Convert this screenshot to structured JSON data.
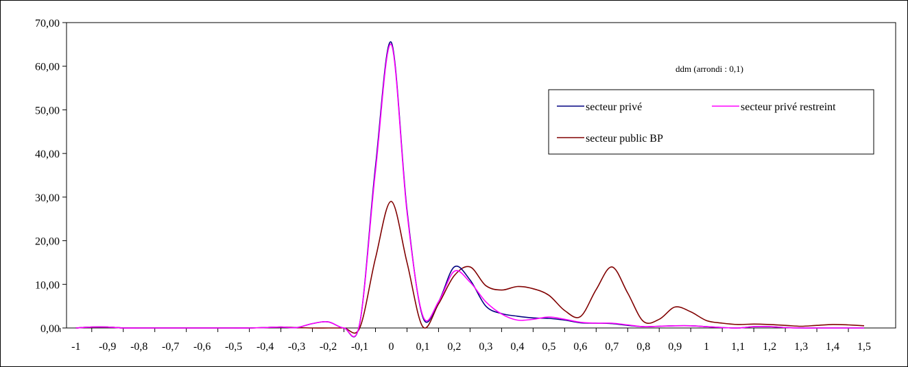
{
  "chart_data": {
    "type": "line",
    "annotation": "ddm  (arrondi : 0,1)",
    "x_labels": [
      "-1",
      "-0,9",
      "-0,8",
      "-0,7",
      "-0,6",
      "-0,5",
      "-0,4",
      "-0,3",
      "-0,2",
      "-0,1",
      "0",
      "0,1",
      "0,2",
      "0,3",
      "0,4",
      "0,5",
      "0,6",
      "0,7",
      "0,8",
      "0,9",
      "1",
      "1,1",
      "1,2",
      "1,3",
      "1,4",
      "1,5"
    ],
    "x": [
      -1,
      -0.9,
      -0.8,
      -0.7,
      -0.6,
      -0.5,
      -0.4,
      -0.3,
      -0.2,
      -0.1,
      0,
      0.1,
      0.2,
      0.3,
      0.4,
      0.5,
      0.6,
      0.7,
      0.8,
      0.9,
      1,
      1.1,
      1.2,
      1.3,
      1.4,
      1.5
    ],
    "y_tick_labels": [
      "0,00",
      "10,00",
      "20,00",
      "30,00",
      "40,00",
      "50,00",
      "60,00",
      "70,00"
    ],
    "ylim": [
      0,
      70
    ],
    "grid": false,
    "legend_position": "top-right",
    "series": [
      {
        "name": "secteur privé",
        "color": "#000080",
        "x": [
          -1,
          -0.95,
          -0.9,
          -0.85,
          -0.8,
          -0.75,
          -0.7,
          -0.65,
          -0.6,
          -0.55,
          -0.5,
          -0.45,
          -0.4,
          -0.35,
          -0.3,
          -0.25,
          -0.2,
          -0.15,
          -0.1,
          -0.05,
          0,
          0.05,
          0.1,
          0.15,
          0.2,
          0.25,
          0.3,
          0.35,
          0.4,
          0.45,
          0.5,
          0.55,
          0.6,
          0.65,
          0.7,
          0.75,
          0.8,
          0.85,
          0.9,
          0.95,
          1,
          1.05,
          1.1,
          1.15,
          1.2,
          1.25,
          1.3,
          1.35,
          1.4,
          1.45,
          1.5
        ],
        "y": [
          0,
          0.2,
          0.2,
          0,
          0,
          0,
          0,
          0,
          0,
          0,
          0,
          0,
          0.1,
          0.2,
          0.1,
          1,
          1.4,
          0,
          1,
          37,
          65.5,
          27,
          2.5,
          6,
          14,
          11,
          5,
          3.3,
          2.7,
          2.3,
          2.2,
          1.8,
          1.2,
          1.1,
          1,
          0.6,
          0.3,
          0.4,
          0.5,
          0.5,
          0.3,
          0.1,
          0,
          0.3,
          0.3,
          0.1,
          0,
          0,
          0,
          0,
          0
        ]
      },
      {
        "name": "secteur privé restreint",
        "color": "#ff00ff",
        "x": [
          -1,
          -0.95,
          -0.9,
          -0.85,
          -0.8,
          -0.75,
          -0.7,
          -0.65,
          -0.6,
          -0.55,
          -0.5,
          -0.45,
          -0.4,
          -0.35,
          -0.3,
          -0.25,
          -0.2,
          -0.15,
          -0.1,
          -0.05,
          0,
          0.05,
          0.1,
          0.15,
          0.2,
          0.25,
          0.3,
          0.35,
          0.4,
          0.45,
          0.5,
          0.55,
          0.6,
          0.65,
          0.7,
          0.75,
          0.8,
          0.85,
          0.9,
          0.95,
          1,
          1.05,
          1.1,
          1.15,
          1.2,
          1.25,
          1.3,
          1.35,
          1.4,
          1.45,
          1.5
        ],
        "y": [
          0,
          0.2,
          0.2,
          0,
          0,
          0,
          0,
          0,
          0,
          0,
          0,
          0,
          0.1,
          0.2,
          0.1,
          1,
          1.4,
          0,
          1,
          36,
          65,
          26.5,
          2.8,
          6,
          13,
          10.5,
          6,
          3.2,
          1.8,
          2,
          2.5,
          2,
          1.3,
          1.1,
          1.1,
          0.7,
          0.3,
          0.4,
          0.5,
          0.5,
          0.3,
          0.1,
          0,
          0.3,
          0.3,
          0.1,
          0,
          0,
          0,
          0,
          0
        ]
      },
      {
        "name": "secteur public BP",
        "color": "#800000",
        "x": [
          -1,
          -0.95,
          -0.9,
          -0.85,
          -0.8,
          -0.75,
          -0.7,
          -0.65,
          -0.6,
          -0.55,
          -0.5,
          -0.45,
          -0.4,
          -0.35,
          -0.3,
          -0.25,
          -0.2,
          -0.15,
          -0.1,
          -0.05,
          0,
          0.05,
          0.1,
          0.15,
          0.2,
          0.25,
          0.3,
          0.35,
          0.4,
          0.45,
          0.5,
          0.55,
          0.6,
          0.65,
          0.7,
          0.75,
          0.8,
          0.85,
          0.9,
          0.95,
          1,
          1.05,
          1.1,
          1.15,
          1.2,
          1.25,
          1.3,
          1.35,
          1.4,
          1.45,
          1.5
        ],
        "y": [
          0,
          0.2,
          0.2,
          0,
          0,
          0,
          0,
          0,
          0,
          0,
          0,
          0,
          0.1,
          0.2,
          0.1,
          0,
          0,
          0,
          0,
          16,
          29,
          15,
          0.3,
          5.5,
          12,
          14,
          9.7,
          8.7,
          9.5,
          9,
          7.5,
          4,
          2.6,
          8.8,
          14,
          8,
          1.5,
          2,
          4.8,
          3.7,
          1.7,
          1.1,
          0.8,
          0.9,
          0.8,
          0.6,
          0.4,
          0.6,
          0.8,
          0.7,
          0.5
        ]
      }
    ]
  }
}
